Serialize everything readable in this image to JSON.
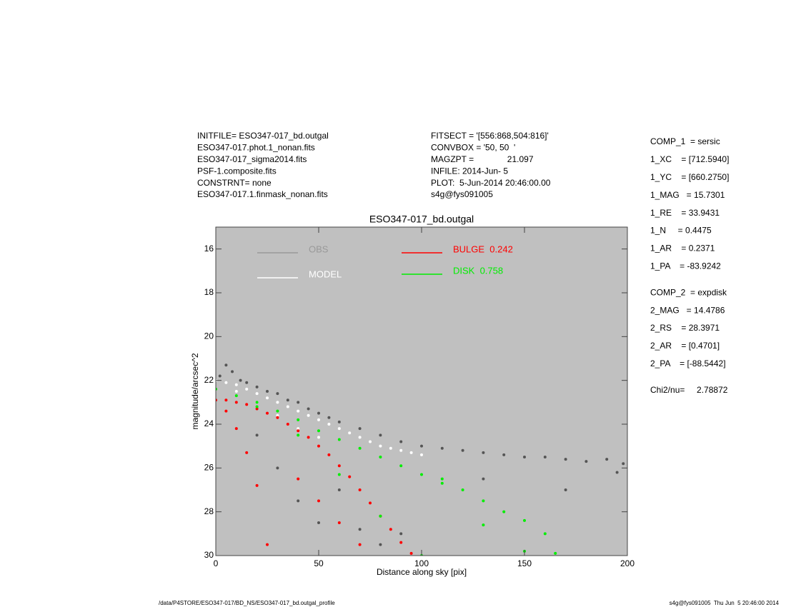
{
  "header": {
    "left": [
      "INITFILE= ESO347-017_bd.outgal",
      "ESO347-017.phot.1_nonan.fits",
      "ESO347-017_sigma2014.fits",
      "PSF-1.composite.fits",
      "CONSTRNT= none",
      "ESO347-017.1.finmask_nonan.fits"
    ],
    "middle": [
      "FITSECT = '[556:868,504:816]'",
      "CONVBOX = '50, 50  '",
      "MAGZPT =              21.097",
      "INFILE: 2014-Jun- 5",
      "PLOT:  5-Jun-2014 20:46:00.00",
      "s4g@fys091005"
    ],
    "right": [
      [
        "COMP_1  = sersic",
        "1_XC    = [712.5940]",
        "1_YC    = [660.2750]",
        "1_MAG   = 15.7301",
        "1_RE    = 33.9431",
        "1_N     = 0.4475",
        "1_AR    = 0.2371",
        "1_PA    = -83.9242"
      ],
      [
        "COMP_2  = expdisk",
        "2_MAG   = 14.4786",
        "2_RS    = 28.3971",
        "2_AR    = [0.4701]",
        "2_PA    = [-88.5442]"
      ],
      [
        "Chi2/nu=     2.78872"
      ]
    ]
  },
  "chart_data": {
    "type": "scatter",
    "title": "ESO347-017_bd.outgal",
    "x_label": "Distance along sky [pix]",
    "y_label": "magnitude/arcsec^2",
    "xlim": [
      0,
      200
    ],
    "xticks": [
      0,
      50,
      100,
      150,
      200
    ],
    "ylim": [
      30,
      15
    ],
    "yticks": [
      16,
      18,
      20,
      22,
      24,
      26,
      28,
      30
    ],
    "background": "#c0c0c0",
    "series": [
      {
        "name": "OBS",
        "color": "#555555",
        "legend_color": "#999999",
        "x": [
          2,
          5,
          8,
          12,
          15,
          20,
          25,
          30,
          35,
          40,
          45,
          50,
          55,
          60,
          70,
          80,
          90,
          100,
          110,
          120,
          130,
          140,
          150,
          160,
          170,
          180,
          190,
          198,
          20,
          30,
          40,
          50,
          60,
          70,
          80,
          90,
          130,
          170,
          195
        ],
        "values": [
          21.8,
          21.3,
          21.6,
          22.0,
          22.1,
          22.3,
          22.5,
          22.6,
          22.9,
          23.0,
          23.3,
          23.5,
          23.7,
          23.9,
          24.2,
          24.5,
          24.8,
          25.0,
          25.1,
          25.2,
          25.3,
          25.4,
          25.5,
          25.5,
          25.6,
          25.7,
          25.6,
          25.8,
          24.5,
          26.0,
          27.5,
          28.5,
          27.0,
          28.8,
          29.5,
          29.0,
          26.5,
          27.0,
          26.2
        ]
      },
      {
        "name": "MODEL",
        "color": "#ffffff",
        "legend_color": "#ffffff",
        "x": [
          0,
          5,
          10,
          15,
          20,
          25,
          30,
          35,
          40,
          45,
          50,
          55,
          60,
          65,
          70,
          75,
          80,
          85,
          90,
          95,
          100,
          10,
          20,
          30,
          40,
          50
        ],
        "values": [
          22.0,
          22.1,
          22.2,
          22.4,
          22.6,
          22.8,
          23.0,
          23.2,
          23.4,
          23.6,
          23.8,
          24.0,
          24.2,
          24.4,
          24.6,
          24.8,
          25.0,
          25.1,
          25.2,
          25.3,
          25.4,
          22.5,
          23.0,
          23.6,
          24.2,
          24.6
        ]
      },
      {
        "name": "BULGE  0.242",
        "color": "#ff0000",
        "legend_color": "#ff0000",
        "x": [
          0,
          5,
          10,
          15,
          20,
          25,
          30,
          35,
          40,
          45,
          50,
          55,
          60,
          65,
          70,
          75,
          80,
          85,
          90,
          95,
          5,
          10,
          15,
          20,
          25,
          40,
          50,
          60,
          70
        ],
        "values": [
          22.9,
          22.9,
          23.0,
          23.1,
          23.3,
          23.5,
          23.7,
          24.0,
          24.3,
          24.6,
          25.0,
          25.4,
          25.9,
          26.4,
          27.0,
          27.6,
          28.2,
          28.8,
          29.4,
          29.9,
          23.4,
          24.2,
          25.3,
          26.8,
          29.5,
          26.5,
          27.5,
          28.5,
          29.5
        ]
      },
      {
        "name": "DISK  0.758",
        "color": "#00ee00",
        "legend_color": "#00ee00",
        "x": [
          0,
          10,
          20,
          30,
          40,
          50,
          60,
          70,
          80,
          90,
          100,
          110,
          120,
          130,
          140,
          150,
          160,
          165,
          20,
          40,
          60,
          80,
          100,
          110,
          130,
          150
        ],
        "values": [
          22.4,
          22.7,
          23.0,
          23.4,
          23.8,
          24.3,
          24.7,
          25.1,
          25.5,
          25.9,
          26.3,
          26.7,
          27.0,
          27.5,
          28.0,
          28.4,
          29.0,
          29.9,
          23.2,
          24.5,
          26.3,
          28.2,
          30.0,
          26.5,
          28.6,
          29.8
        ]
      }
    ]
  },
  "footer": {
    "left": "/data/P4STORE/ESO347-017/BD_NS/ESO347-017_bd.outgal_profile",
    "right": "s4g@fys091005  Thu Jun  5 20:46:00 2014"
  }
}
